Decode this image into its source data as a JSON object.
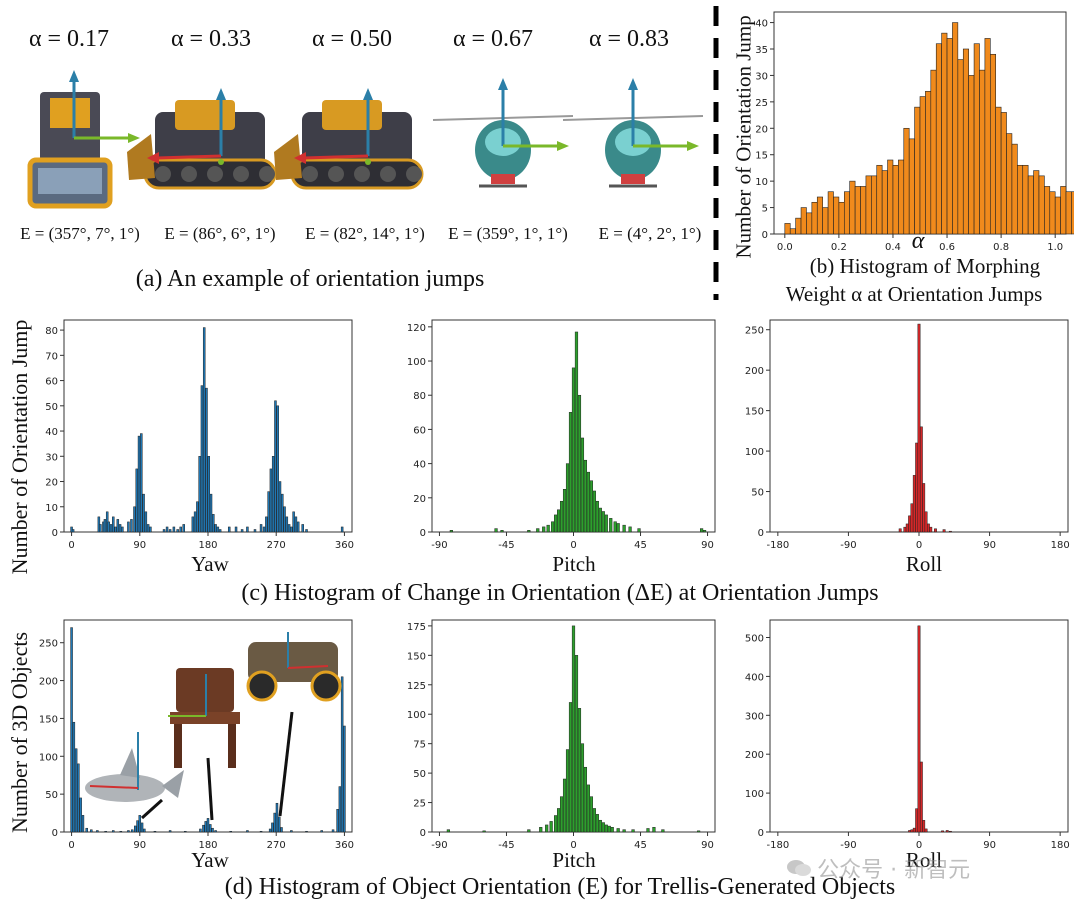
{
  "panel_a": {
    "alphas": [
      "α = 0.17",
      "α = 0.33",
      "α = 0.50",
      "α = 0.67",
      "α = 0.83"
    ],
    "eulers": [
      "E = (357°, 7°, 1°)",
      "E = (86°, 6°, 1°)",
      "E = (82°, 14°, 1°)",
      "E = (359°, 1°, 1°)",
      "E = (4°, 2°, 1°)"
    ],
    "objects": [
      "bulldozer",
      "bulldozer",
      "bulldozer",
      "helicopter",
      "helicopter"
    ],
    "caption": "(a) An example of orientation jumps"
  },
  "panel_b": {
    "caption_line1": "(b) Histogram of Morphing",
    "caption_line2": "Weight α at Orientation Jumps",
    "ylabel": "Number of Orientation Jump",
    "xlabel": "α"
  },
  "panel_c": {
    "ylabel": "Number of Orientation Jump",
    "caption": "(c) Histogram of Change in Orientation (ΔE) at Orientation Jumps"
  },
  "panel_d": {
    "ylabel": "Number of 3D Objects",
    "caption": "(d) Histogram of Object Orientation (E) for Trellis-Generated Objects",
    "inset_objects": [
      "shark",
      "chair",
      "buggy"
    ]
  },
  "watermark": "公众号 · 新智元",
  "colors": {
    "orange": "#f08a1c",
    "blue": "#1f77b4",
    "green": "#2ca02c",
    "red": "#d62728"
  },
  "chart_data": [
    {
      "id": "b",
      "type": "bar",
      "xlabel": "α",
      "ylabel": "Number of Orientation Jump",
      "xlim": [
        -0.04,
        1.04
      ],
      "ylim": [
        0,
        42
      ],
      "xticks": [
        0.0,
        0.2,
        0.4,
        0.6,
        0.8,
        1.0
      ],
      "xtick_labels": [
        "0.0",
        "0.2",
        "0.4",
        "0.6",
        "0.8",
        "1.0"
      ],
      "yticks": [
        0,
        5,
        10,
        15,
        20,
        25,
        30,
        35,
        40
      ],
      "ytick_labels": [
        "0",
        "5",
        "10",
        "15",
        "20",
        "25",
        "30",
        "35",
        "40"
      ],
      "bin_start": 0.0,
      "bin_width": 0.02,
      "values": [
        2,
        1,
        3,
        5,
        4,
        6,
        7,
        5,
        8,
        7,
        6,
        8,
        10,
        9,
        9,
        11,
        11,
        13,
        12,
        14,
        13,
        14,
        20,
        18,
        24,
        26,
        27,
        31,
        36,
        38,
        37,
        40,
        33,
        35,
        30,
        36,
        31,
        37,
        34,
        24,
        23,
        19,
        17,
        13,
        13,
        11,
        12,
        11,
        9,
        8,
        7,
        9,
        8,
        8,
        6,
        9,
        7,
        6,
        5,
        4,
        2
      ]
    },
    {
      "id": "c-yaw",
      "type": "bar",
      "xlabel": "Yaw",
      "ylabel": "Number of Orientation Jump",
      "xlim": [
        -10,
        370
      ],
      "ylim": [
        0,
        84
      ],
      "xticks": [
        0,
        90,
        180,
        270,
        360
      ],
      "xtick_labels": [
        "0",
        "90",
        "180",
        "270",
        "360"
      ],
      "yticks": [
        0,
        10,
        20,
        30,
        40,
        50,
        60,
        70,
        80
      ],
      "ytick_labels": [
        "0",
        "10",
        "20",
        "30",
        "40",
        "50",
        "60",
        "70",
        "80"
      ],
      "x": [
        0,
        2,
        36,
        38,
        42,
        44,
        47,
        49,
        52,
        55,
        58,
        61,
        64,
        67,
        75,
        79,
        83,
        86,
        89,
        92,
        95,
        98,
        101,
        104,
        122,
        126,
        130,
        135,
        140,
        144,
        148,
        160,
        163,
        166,
        169,
        172,
        175,
        178,
        181,
        184,
        187,
        190,
        193,
        196,
        208,
        217,
        225,
        232,
        242,
        250,
        254,
        257,
        260,
        263,
        266,
        269,
        272,
        275,
        278,
        281,
        284,
        287,
        290,
        293,
        296,
        299,
        305,
        310,
        357
      ],
      "heights": [
        2,
        1,
        6,
        3,
        4,
        5,
        8,
        4,
        3,
        6,
        2,
        5,
        3,
        2,
        4,
        5,
        10,
        25,
        38,
        39,
        15,
        8,
        3,
        2,
        1,
        2,
        1,
        2,
        1,
        2,
        3,
        6,
        8,
        12,
        30,
        58,
        81,
        57,
        30,
        15,
        7,
        3,
        2,
        1,
        2,
        2,
        1,
        2,
        1,
        3,
        2,
        6,
        16,
        25,
        30,
        52,
        50,
        20,
        15,
        10,
        6,
        3,
        2,
        8,
        6,
        4,
        3,
        1,
        2
      ]
    },
    {
      "id": "c-pitch",
      "type": "bar",
      "xlabel": "Pitch",
      "xlim": [
        -95,
        95
      ],
      "ylim": [
        0,
        124
      ],
      "xticks": [
        -90,
        -45,
        0,
        45,
        90
      ],
      "xtick_labels": [
        "-90",
        "-45",
        "0",
        "45",
        "90"
      ],
      "yticks": [
        0,
        20,
        40,
        60,
        80,
        100,
        120
      ],
      "ytick_labels": [
        "0",
        "20",
        "40",
        "60",
        "80",
        "100",
        "120"
      ],
      "x": [
        -82,
        -52,
        -48,
        -30,
        -24,
        -20,
        -17,
        -14,
        -12,
        -10,
        -8,
        -6,
        -4,
        -2,
        0,
        2,
        4,
        6,
        8,
        10,
        12,
        14,
        16,
        18,
        20,
        22,
        25,
        28,
        30,
        34,
        38,
        44,
        86,
        88
      ],
      "heights": [
        1,
        2,
        1,
        1,
        2,
        3,
        4,
        6,
        10,
        13,
        18,
        25,
        40,
        70,
        96,
        117,
        80,
        55,
        42,
        35,
        30,
        24,
        18,
        14,
        12,
        10,
        8,
        6,
        5,
        4,
        3,
        2,
        2,
        1
      ]
    },
    {
      "id": "c-roll",
      "type": "bar",
      "xlabel": "Roll",
      "xlim": [
        -190,
        190
      ],
      "ylim": [
        0,
        262
      ],
      "xticks": [
        -180,
        -90,
        0,
        90,
        180
      ],
      "xtick_labels": [
        "-180",
        "-90",
        "0",
        "90",
        "180"
      ],
      "yticks": [
        0,
        50,
        100,
        150,
        200,
        250
      ],
      "ytick_labels": [
        "0",
        "50",
        "100",
        "150",
        "200",
        "250"
      ],
      "x": [
        -24,
        -18,
        -15,
        -12,
        -9,
        -6,
        -3,
        0,
        3,
        6,
        9,
        12,
        15,
        21,
        32,
        40
      ],
      "heights": [
        4,
        6,
        10,
        20,
        35,
        70,
        110,
        257,
        130,
        60,
        25,
        10,
        6,
        4,
        3,
        1
      ]
    },
    {
      "id": "d-yaw",
      "type": "bar",
      "xlabel": "Yaw",
      "ylabel": "Number of 3D Objects",
      "xlim": [
        -10,
        370
      ],
      "ylim": [
        0,
        280
      ],
      "xticks": [
        0,
        90,
        180,
        270,
        360
      ],
      "xtick_labels": [
        "0",
        "90",
        "180",
        "270",
        "360"
      ],
      "yticks": [
        0,
        50,
        100,
        150,
        200,
        250
      ],
      "ytick_labels": [
        "0",
        "50",
        "100",
        "150",
        "200",
        "250"
      ],
      "x": [
        0,
        3,
        6,
        9,
        12,
        15,
        20,
        26,
        34,
        45,
        55,
        65,
        75,
        80,
        84,
        87,
        90,
        93,
        96,
        110,
        130,
        150,
        170,
        174,
        177,
        180,
        183,
        186,
        190,
        210,
        232,
        250,
        262,
        265,
        268,
        271,
        274,
        277,
        290,
        310,
        330,
        345,
        351,
        354,
        357,
        360
      ],
      "heights": [
        270,
        145,
        110,
        90,
        45,
        22,
        5,
        3,
        2,
        1,
        2,
        1,
        2,
        3,
        8,
        15,
        22,
        12,
        4,
        1,
        2,
        1,
        4,
        9,
        14,
        18,
        10,
        5,
        2,
        1,
        2,
        1,
        4,
        12,
        25,
        38,
        20,
        6,
        2,
        1,
        2,
        3,
        30,
        60,
        205,
        140
      ]
    },
    {
      "id": "d-pitch",
      "type": "bar",
      "xlabel": "Pitch",
      "xlim": [
        -95,
        95
      ],
      "ylim": [
        0,
        180
      ],
      "xticks": [
        -90,
        -45,
        0,
        45,
        90
      ],
      "xtick_labels": [
        "-90",
        "-45",
        "0",
        "45",
        "90"
      ],
      "yticks": [
        0,
        25,
        50,
        75,
        100,
        125,
        150,
        175
      ],
      "ytick_labels": [
        "0",
        "25",
        "50",
        "75",
        "100",
        "125",
        "150",
        "175"
      ],
      "x": [
        -84,
        -60,
        -30,
        -22,
        -18,
        -15,
        -12,
        -10,
        -8,
        -6,
        -4,
        -2,
        0,
        2,
        4,
        6,
        8,
        10,
        12,
        14,
        16,
        18,
        20,
        22,
        24,
        26,
        30,
        34,
        40,
        50,
        54,
        60,
        84
      ],
      "heights": [
        2,
        1,
        2,
        4,
        6,
        9,
        14,
        20,
        30,
        45,
        70,
        110,
        175,
        150,
        105,
        75,
        55,
        40,
        30,
        20,
        15,
        10,
        8,
        6,
        5,
        4,
        3,
        2,
        2,
        3,
        4,
        2,
        1
      ]
    },
    {
      "id": "d-roll",
      "type": "bar",
      "xlabel": "Roll",
      "xlim": [
        -190,
        190
      ],
      "ylim": [
        0,
        545
      ],
      "xticks": [
        -180,
        -90,
        0,
        90,
        180
      ],
      "xtick_labels": [
        "-180",
        "-90",
        "0",
        "90",
        "180"
      ],
      "yticks": [
        0,
        100,
        200,
        300,
        400,
        500
      ],
      "ytick_labels": [
        "0",
        "100",
        "200",
        "300",
        "400",
        "500"
      ],
      "x": [
        -12,
        -9,
        -6,
        -3,
        0,
        3,
        6,
        9,
        30,
        36,
        40
      ],
      "heights": [
        4,
        6,
        10,
        60,
        530,
        180,
        30,
        8,
        3,
        4,
        2
      ]
    }
  ]
}
